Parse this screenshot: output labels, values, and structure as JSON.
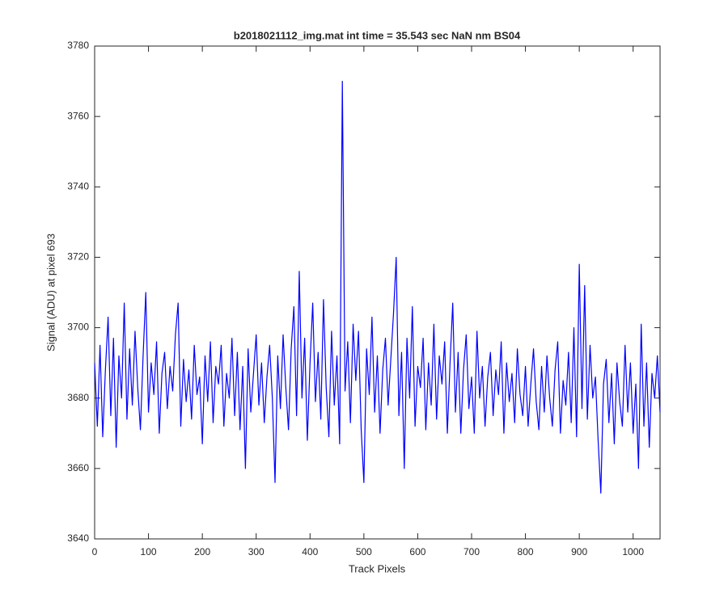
{
  "chart_data": {
    "type": "line",
    "title": "b2018021112_img.mat int time = 35.543 sec  NaN nm BS04",
    "xlabel": "Track Pixels",
    "ylabel": "Signal (ADU) at pixel 693",
    "xlim": [
      0,
      1050
    ],
    "ylim": [
      3640,
      3780
    ],
    "xticks": [
      0,
      100,
      200,
      300,
      400,
      500,
      600,
      700,
      800,
      900,
      1000
    ],
    "yticks": [
      3640,
      3660,
      3680,
      3700,
      3720,
      3740,
      3760,
      3780
    ],
    "series": [
      {
        "color": "#0000ff",
        "x": [
          0,
          5,
          10,
          15,
          20,
          25,
          30,
          35,
          40,
          45,
          50,
          55,
          60,
          65,
          70,
          75,
          80,
          85,
          90,
          95,
          100,
          105,
          110,
          115,
          120,
          125,
          130,
          135,
          140,
          145,
          150,
          155,
          160,
          165,
          170,
          175,
          180,
          185,
          190,
          195,
          200,
          205,
          210,
          215,
          220,
          225,
          230,
          235,
          240,
          245,
          250,
          255,
          260,
          265,
          270,
          275,
          280,
          285,
          290,
          295,
          300,
          305,
          310,
          315,
          320,
          325,
          330,
          335,
          340,
          345,
          350,
          355,
          360,
          365,
          370,
          375,
          380,
          385,
          390,
          395,
          400,
          405,
          410,
          415,
          420,
          425,
          430,
          435,
          440,
          445,
          450,
          455,
          460,
          465,
          470,
          475,
          480,
          485,
          490,
          495,
          500,
          505,
          510,
          515,
          520,
          525,
          530,
          535,
          540,
          545,
          550,
          555,
          560,
          565,
          570,
          575,
          580,
          585,
          590,
          595,
          600,
          605,
          610,
          615,
          620,
          625,
          630,
          635,
          640,
          645,
          650,
          655,
          660,
          665,
          670,
          675,
          680,
          685,
          690,
          695,
          700,
          705,
          710,
          715,
          720,
          725,
          730,
          735,
          740,
          745,
          750,
          755,
          760,
          765,
          770,
          775,
          780,
          785,
          790,
          795,
          800,
          805,
          810,
          815,
          820,
          825,
          830,
          835,
          840,
          845,
          850,
          855,
          860,
          865,
          870,
          875,
          880,
          885,
          890,
          895,
          900,
          905,
          910,
          915,
          920,
          925,
          930,
          935,
          940,
          945,
          950,
          955,
          960,
          965,
          970,
          975,
          980,
          985,
          990,
          995,
          1000,
          1005,
          1010,
          1015,
          1020,
          1025,
          1030,
          1035,
          1040,
          1045,
          1050
        ],
        "values": [
          3690,
          3672,
          3695,
          3669,
          3688,
          3703,
          3675,
          3697,
          3666,
          3692,
          3680,
          3707,
          3674,
          3694,
          3678,
          3699,
          3683,
          3671,
          3692,
          3710,
          3676,
          3690,
          3681,
          3696,
          3670,
          3687,
          3693,
          3677,
          3689,
          3682,
          3698,
          3707,
          3672,
          3691,
          3679,
          3688,
          3674,
          3695,
          3681,
          3686,
          3667,
          3692,
          3679,
          3696,
          3673,
          3689,
          3684,
          3695,
          3672,
          3687,
          3680,
          3697,
          3675,
          3693,
          3671,
          3689,
          3660,
          3694,
          3676,
          3687,
          3698,
          3678,
          3690,
          3673,
          3686,
          3695,
          3680,
          3656,
          3692,
          3677,
          3698,
          3683,
          3671,
          3694,
          3706,
          3675,
          3716,
          3680,
          3697,
          3668,
          3690,
          3707,
          3679,
          3693,
          3674,
          3708,
          3683,
          3669,
          3699,
          3678,
          3692,
          3667,
          3770,
          3682,
          3696,
          3673,
          3701,
          3685,
          3699,
          3671,
          3656,
          3694,
          3681,
          3703,
          3676,
          3692,
          3670,
          3688,
          3697,
          3678,
          3691,
          3704,
          3720,
          3675,
          3693,
          3660,
          3697,
          3680,
          3706,
          3672,
          3689,
          3683,
          3697,
          3671,
          3690,
          3678,
          3701,
          3674,
          3692,
          3684,
          3696,
          3670,
          3690,
          3707,
          3676,
          3693,
          3670,
          3688,
          3698,
          3677,
          3686,
          3670,
          3699,
          3680,
          3689,
          3672,
          3686,
          3693,
          3675,
          3688,
          3681,
          3696,
          3670,
          3690,
          3679,
          3687,
          3673,
          3694,
          3681,
          3675,
          3689,
          3672,
          3684,
          3694,
          3679,
          3671,
          3689,
          3676,
          3692,
          3680,
          3672,
          3688,
          3696,
          3670,
          3685,
          3678,
          3693,
          3673,
          3700,
          3669,
          3718,
          3677,
          3712,
          3674,
          3695,
          3680,
          3686,
          3668,
          3653,
          3684,
          3691,
          3673,
          3687,
          3667,
          3690,
          3679,
          3672,
          3695,
          3676,
          3690,
          3670,
          3684,
          3660,
          3701,
          3672,
          3690,
          3666,
          3687,
          3680,
          3692,
          3676
        ]
      }
    ]
  }
}
